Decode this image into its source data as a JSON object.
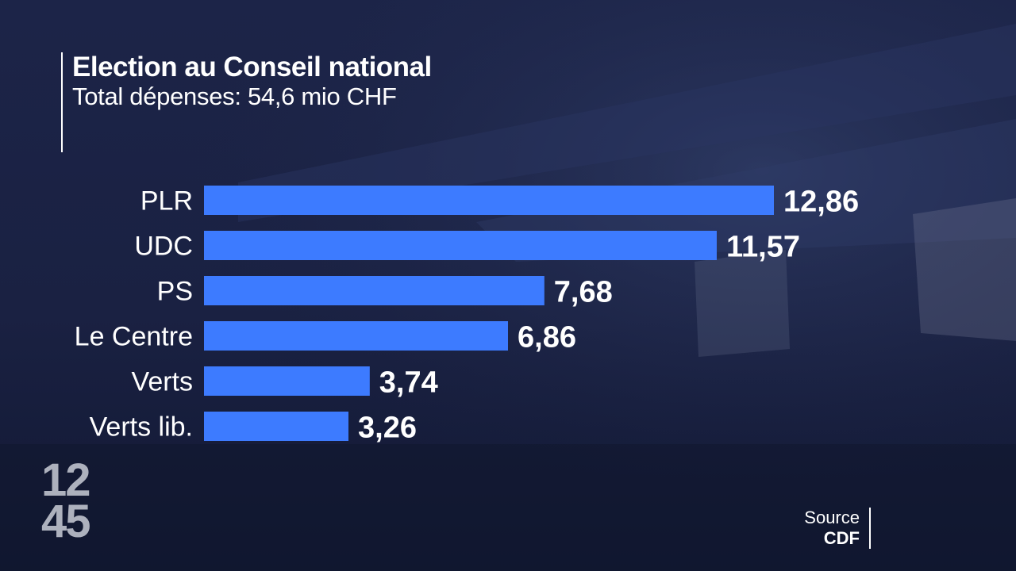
{
  "header": {
    "title": "Election au Conseil national",
    "subtitle": "Total dépenses: 54,6 mio CHF"
  },
  "chart_data": {
    "type": "bar",
    "orientation": "horizontal",
    "categories": [
      "PLR",
      "UDC",
      "PS",
      "Le Centre",
      "Verts",
      "Verts lib."
    ],
    "values": [
      12.86,
      11.57,
      7.68,
      6.86,
      3.74,
      3.26
    ],
    "value_labels": [
      "12,86",
      "11,57",
      "7,68",
      "6,86",
      "3,74",
      "3,26"
    ],
    "title": "Election au Conseil national",
    "subtitle": "Total dépenses: 54,6 mio CHF",
    "bar_color": "#3d7bff"
  },
  "clock": {
    "hours": "12",
    "minutes": "45"
  },
  "source": {
    "label": "Source",
    "value": "CDF"
  },
  "colors": {
    "background": "#17203f",
    "bar": "#3d7bff",
    "text": "#ffffff"
  }
}
